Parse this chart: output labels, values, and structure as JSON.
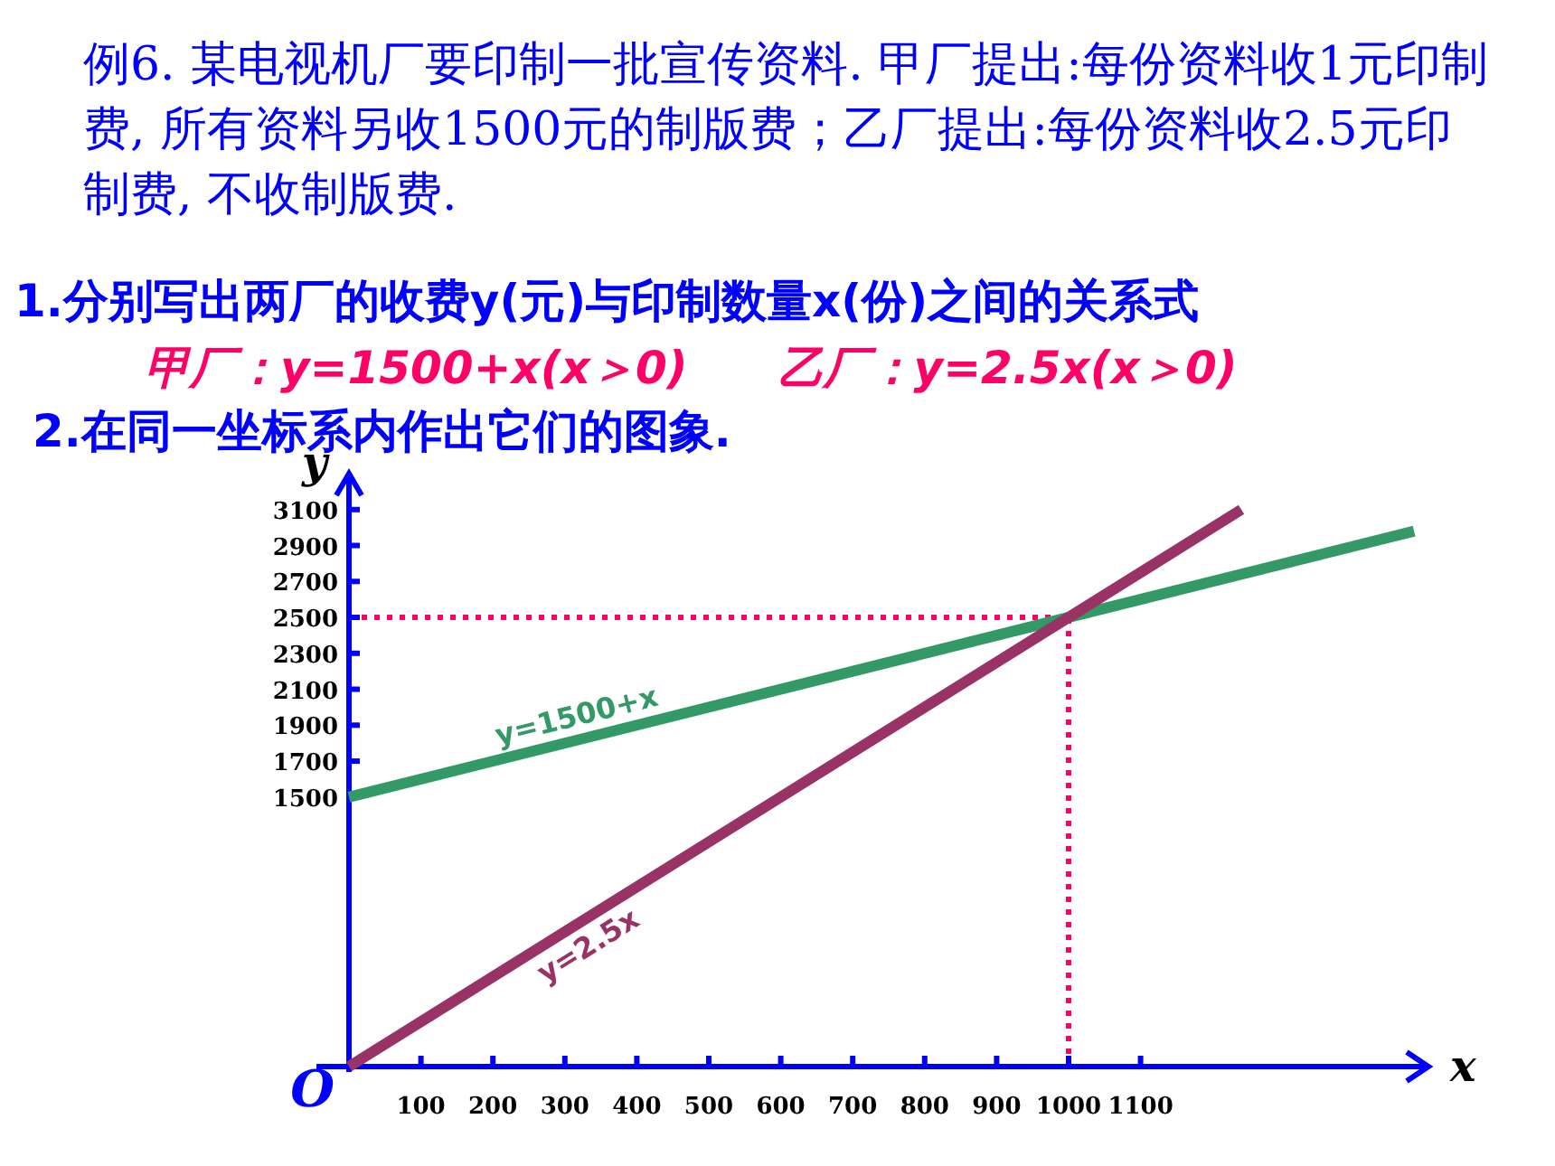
{
  "chart_data": {
    "type": "line",
    "title": "例6. 某电视机厂要印制一批宣传资料. 甲厂提出:每份资料收1元印制费, 所有资料另收1500元的制版费；乙厂提出:每份资料收2.5元印制费, 不收制版费.",
    "annotations": [
      "1.分别写出两厂的收费y(元)与印制数量x(份)之间的关系式",
      "甲厂：y=1500+x(x＞0)　　乙厂：y=2.5x(x＞0)",
      "2.在同一坐标系内作出它们的图象.",
      {
        "text": "O",
        "x": 0,
        "y": 0
      }
    ],
    "xlabel": "x",
    "ylabel": "y",
    "series": [
      {
        "name": "y=1500+x",
        "color": "#339966",
        "x": [
          0,
          1480
        ],
        "values": [
          1500,
          2980
        ]
      },
      {
        "name": "y=2.5x",
        "color": "#993366",
        "x": [
          0,
          1240
        ],
        "values": [
          0,
          3100
        ]
      }
    ],
    "xlim": [
      0,
      1500
    ],
    "ylim": [
      0,
      3300
    ],
    "xticks": [
      100,
      200,
      300,
      400,
      500,
      600,
      700,
      800,
      900,
      1000,
      1100
    ],
    "yticks": [
      1500,
      1700,
      1900,
      2100,
      2300,
      2500,
      2700,
      2900,
      3100
    ],
    "ref_lines": [
      {
        "axis": "y",
        "value": 2500,
        "color": "#ff0066",
        "line_style": "dotted"
      },
      {
        "axis": "x",
        "value": 1000,
        "color": "#ff0066",
        "line_style": "dotted"
      }
    ],
    "line_style": "solid"
  }
}
